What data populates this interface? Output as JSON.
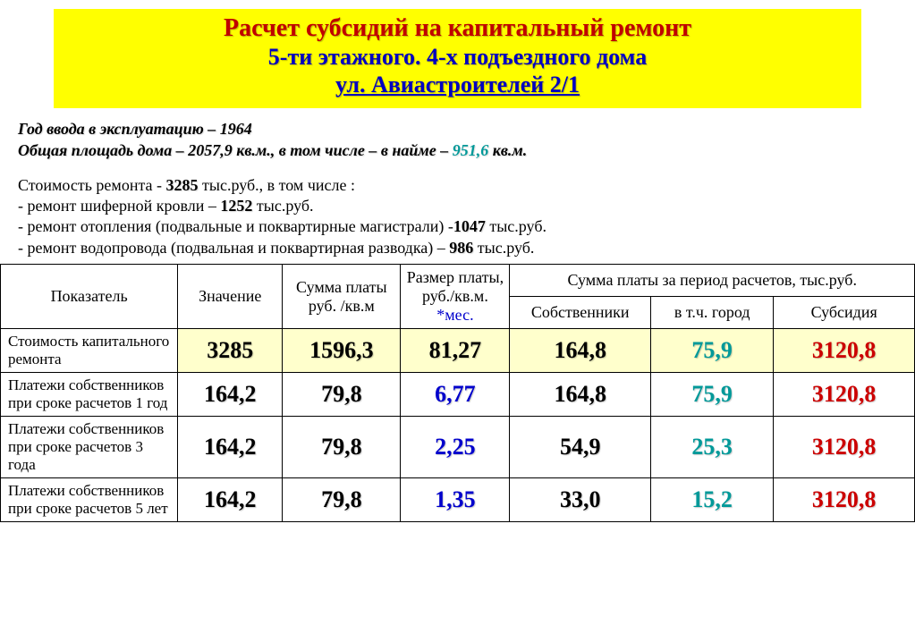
{
  "colors": {
    "header_bg": "#ffff00",
    "title_color": "#c00000",
    "subtitle_color": "#0000c0",
    "highlight_teal": "#009999",
    "val_blue": "#0000cc",
    "val_teal": "#009999",
    "val_red": "#cc0000",
    "row_hl_bg": "#ffffcc"
  },
  "header": {
    "line1": "Расчет субсидий на капитальный ремонт",
    "line2": "5-ти этажного. 4-х подъездного дома",
    "line3": "ул. Авиастроителей 2/1"
  },
  "info": {
    "year_label": "Год ввода в эксплуатацию – 1964",
    "area_prefix": "Общая площадь дома – 2057,9 кв.м., в том числе – в найме – ",
    "area_hl": "951,6",
    "area_suffix": " кв.м."
  },
  "cost": {
    "line1a": "Стоимость ремонта - ",
    "line1b": "3285",
    "line1c": " тыс.руб.,  в том числе :",
    "line2a": "- ремонт шиферной кровли – ",
    "line2b": "1252",
    "line2c": " тыс.руб.",
    "line3a": "- ремонт отопления (подвальные и поквартирные магистрали) -",
    "line3b": "1047",
    "line3c": " тыс.руб.",
    "line4a": "- ремонт водопровода (подвальная и поквартирная разводка) – ",
    "line4b": "986",
    "line4c": " тыс.руб."
  },
  "table": {
    "headers": {
      "indicator": "Показатель",
      "value": "Значение",
      "sum_per_sqm": "Сумма платы руб. /кв.м",
      "rate_per_sqm_prefix": "Размер платы, руб./кв.м.",
      "rate_month": "*мес.",
      "period_sum": "Сумма платы за период расчетов, тыс.руб.",
      "owners": "Собственники",
      "city": "в т.ч. город",
      "subsidy": "Субсидия"
    },
    "rows": [
      {
        "label": "Стоимость капитального ремонта",
        "highlight": true,
        "cells": [
          {
            "v": "3285",
            "cls": "c-black"
          },
          {
            "v": "1596,3",
            "cls": "c-black"
          },
          {
            "v": "81,27",
            "cls": "c-black"
          },
          {
            "v": "164,8",
            "cls": "c-black"
          },
          {
            "v": "75,9",
            "cls": "c-teal"
          },
          {
            "v": "3120,8",
            "cls": "c-red"
          }
        ]
      },
      {
        "label": "Платежи собственников при сроке расчетов 1 год",
        "highlight": false,
        "cells": [
          {
            "v": "164,2",
            "cls": "c-black"
          },
          {
            "v": "79,8",
            "cls": "c-black"
          },
          {
            "v": "6,77",
            "cls": "c-blue"
          },
          {
            "v": "164,8",
            "cls": "c-black"
          },
          {
            "v": "75,9",
            "cls": "c-teal"
          },
          {
            "v": "3120,8",
            "cls": "c-red"
          }
        ]
      },
      {
        "label": "Платежи собственников при сроке расчетов 3 года",
        "highlight": false,
        "cells": [
          {
            "v": "164,2",
            "cls": "c-black"
          },
          {
            "v": "79,8",
            "cls": "c-black"
          },
          {
            "v": "2,25",
            "cls": "c-blue"
          },
          {
            "v": "54,9",
            "cls": "c-black"
          },
          {
            "v": "25,3",
            "cls": "c-teal"
          },
          {
            "v": "3120,8",
            "cls": "c-red"
          }
        ]
      },
      {
        "label": "Платежи собственников при сроке расчетов 5 лет",
        "highlight": false,
        "cells": [
          {
            "v": "164,2",
            "cls": "c-black"
          },
          {
            "v": "79,8",
            "cls": "c-black"
          },
          {
            "v": "1,35",
            "cls": "c-blue"
          },
          {
            "v": "33,0",
            "cls": "c-black"
          },
          {
            "v": "15,2",
            "cls": "c-teal"
          },
          {
            "v": "3120,8",
            "cls": "c-red"
          }
        ]
      }
    ]
  }
}
